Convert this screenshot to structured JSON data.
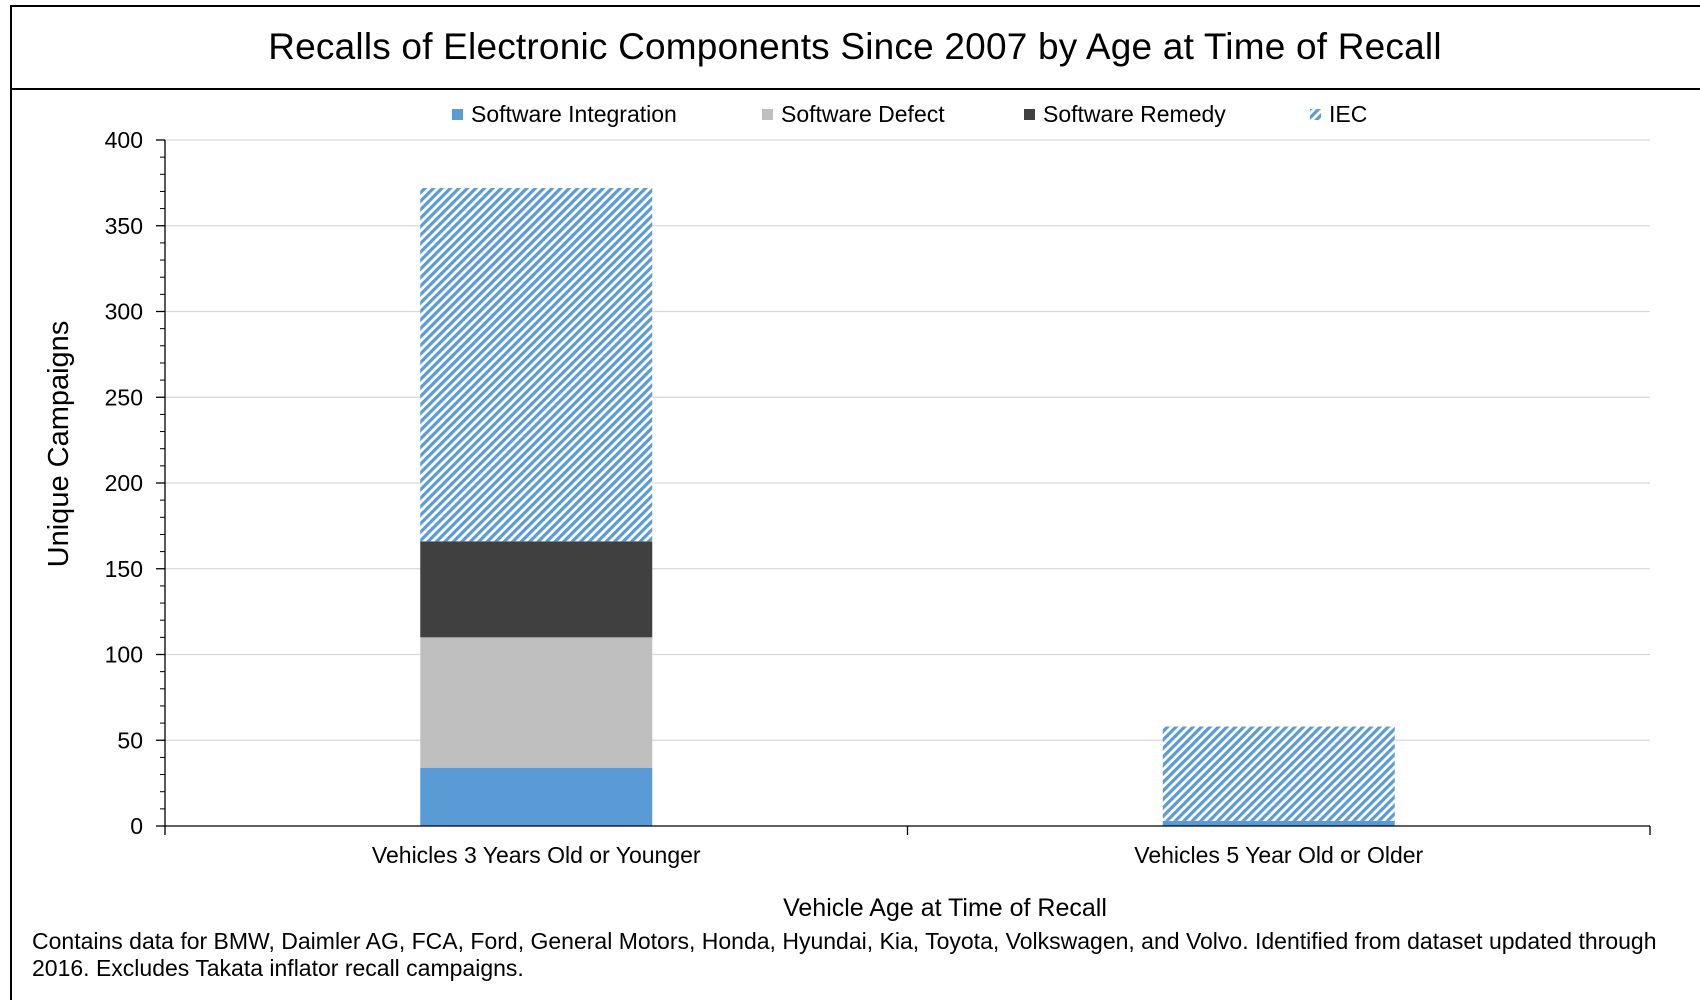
{
  "title": "Recalls of Electronic Components Since 2007 by Age at Time of Recall",
  "footnote": "Contains data for BMW, Daimler AG, FCA, Ford, General Motors, Honda, Hyundai, Kia, Toyota, Volkswagen, and Volvo. Identified from dataset updated through 2016. Excludes Takata inflator recall campaigns.",
  "chart_data": {
    "type": "bar",
    "stacked": true,
    "title": "Recalls of Electronic Components Since 2007 by Age at Time of Recall",
    "xlabel": "Vehicle Age at Time of Recall",
    "ylabel": "Unique Campaigns",
    "ylim": [
      0,
      400
    ],
    "yticks": [
      0,
      50,
      100,
      150,
      200,
      250,
      300,
      350,
      400
    ],
    "grid": true,
    "legend_position": "top",
    "categories": [
      "Vehicles 3 Years Old or Younger",
      "Vehicles 5 Year Old or Older"
    ],
    "series": [
      {
        "name": "Software Integration",
        "values": [
          34,
          3
        ],
        "color": "#5b9bd5",
        "pattern": "solid"
      },
      {
        "name": "Software Defect",
        "values": [
          76,
          0
        ],
        "color": "#bfbfbf",
        "pattern": "solid"
      },
      {
        "name": "Software Remedy",
        "values": [
          56,
          0
        ],
        "color": "#404040",
        "pattern": "solid"
      },
      {
        "name": "IEC",
        "values": [
          206,
          55
        ],
        "color": "#5b9bd5",
        "pattern": "diagonal-hatch"
      }
    ]
  }
}
